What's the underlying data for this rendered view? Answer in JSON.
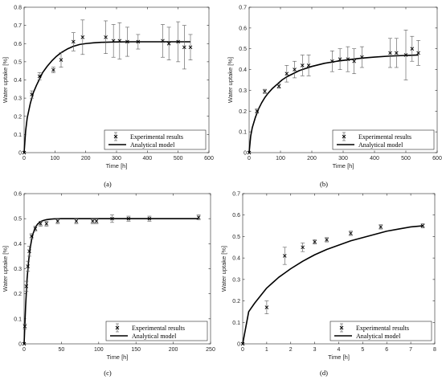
{
  "figure": {
    "captions": [
      "(a)",
      "(b)",
      "(c)",
      "(d)"
    ]
  },
  "chart_data": [
    {
      "type": "scatter",
      "panel": "(a)",
      "xlabel": "Time [h]",
      "ylabel": "Water uptake [%]",
      "xlim": [
        0,
        600
      ],
      "ylim": [
        0,
        0.8
      ],
      "xticks": [
        0,
        100,
        200,
        300,
        400,
        500,
        600
      ],
      "yticks": [
        0,
        0.1,
        0.2,
        0.3,
        0.4,
        0.5,
        0.6,
        0.7,
        0.8
      ],
      "legend": {
        "position": "bottom-right",
        "entries": [
          "Experimental results",
          "Analytical model"
        ]
      },
      "series": [
        {
          "name": "Experimental results",
          "style": "x-markers-with-error-bars",
          "x": [
            0,
            25,
            50,
            95,
            120,
            160,
            190,
            265,
            290,
            310,
            335,
            370,
            450,
            470,
            500,
            520,
            540
          ],
          "y": [
            0.0,
            0.32,
            0.42,
            0.455,
            0.51,
            0.61,
            0.635,
            0.635,
            0.615,
            0.615,
            0.61,
            0.61,
            0.615,
            0.6,
            0.61,
            0.58,
            0.58
          ],
          "err": [
            0.0,
            0.02,
            0.02,
            0.015,
            0.04,
            0.05,
            0.095,
            0.09,
            0.09,
            0.1,
            0.08,
            0.04,
            0.09,
            0.09,
            0.11,
            0.12,
            0.07
          ]
        },
        {
          "name": "Analytical model",
          "style": "line",
          "x": [
            0,
            5,
            10,
            20,
            30,
            40,
            50,
            60,
            75,
            90,
            105,
            120,
            140,
            160,
            180,
            200,
            225,
            250,
            300,
            350,
            400,
            450,
            500,
            540
          ],
          "y": [
            0.0,
            0.12,
            0.19,
            0.27,
            0.33,
            0.37,
            0.405,
            0.44,
            0.475,
            0.505,
            0.53,
            0.55,
            0.57,
            0.585,
            0.595,
            0.6,
            0.604,
            0.607,
            0.609,
            0.61,
            0.61,
            0.61,
            0.61,
            0.61
          ]
        }
      ]
    },
    {
      "type": "scatter",
      "panel": "(b)",
      "xlabel": "Time [h]",
      "ylabel": "Water uptake [%]",
      "xlim": [
        0,
        600
      ],
      "ylim": [
        0,
        0.7
      ],
      "xticks": [
        0,
        100,
        200,
        300,
        400,
        500,
        600
      ],
      "yticks": [
        0,
        0.1,
        0.2,
        0.3,
        0.4,
        0.5,
        0.6,
        0.7
      ],
      "legend": {
        "position": "bottom-right",
        "entries": [
          "Experimental results",
          "Analytical model"
        ]
      },
      "series": [
        {
          "name": "Experimental results",
          "style": "x-markers-with-error-bars",
          "x": [
            0,
            25,
            50,
            95,
            120,
            145,
            170,
            190,
            265,
            290,
            315,
            335,
            360,
            450,
            470,
            500,
            520,
            540
          ],
          "y": [
            0.0,
            0.2,
            0.295,
            0.32,
            0.38,
            0.4,
            0.42,
            0.42,
            0.44,
            0.45,
            0.45,
            0.44,
            0.46,
            0.48,
            0.48,
            0.47,
            0.5,
            0.48
          ],
          "err": [
            0.0,
            0.01,
            0.01,
            0.01,
            0.04,
            0.04,
            0.05,
            0.05,
            0.05,
            0.05,
            0.06,
            0.06,
            0.05,
            0.07,
            0.07,
            0.12,
            0.06,
            0.06
          ]
        },
        {
          "name": "Analytical model",
          "style": "line",
          "x": [
            0,
            5,
            10,
            20,
            30,
            40,
            50,
            60,
            75,
            90,
            105,
            120,
            140,
            160,
            180,
            200,
            240,
            280,
            320,
            360,
            400,
            450,
            500,
            540
          ],
          "y": [
            0.0,
            0.08,
            0.12,
            0.17,
            0.21,
            0.24,
            0.265,
            0.285,
            0.31,
            0.33,
            0.35,
            0.365,
            0.38,
            0.395,
            0.405,
            0.415,
            0.43,
            0.44,
            0.448,
            0.455,
            0.46,
            0.465,
            0.468,
            0.47
          ]
        }
      ]
    },
    {
      "type": "scatter",
      "panel": "(c)",
      "xlabel": "Time [h]",
      "ylabel": "Water uptake [%]",
      "xlim": [
        0,
        250
      ],
      "ylim": [
        0,
        0.6
      ],
      "xticks": [
        0,
        50,
        100,
        150,
        200,
        250
      ],
      "yticks": [
        0,
        0.1,
        0.2,
        0.3,
        0.4,
        0.5,
        0.6
      ],
      "legend": {
        "position": "bottom-right",
        "entries": [
          "Experimental results",
          "Analytical model"
        ]
      },
      "series": [
        {
          "name": "Experimental results",
          "style": "x-markers-with-error-bars",
          "x": [
            0,
            1,
            3,
            5,
            7,
            10,
            15,
            22,
            30,
            45,
            70,
            92,
            97,
            118,
            140,
            168,
            234
          ],
          "y": [
            0.0,
            0.07,
            0.23,
            0.31,
            0.37,
            0.43,
            0.46,
            0.48,
            0.48,
            0.49,
            0.49,
            0.49,
            0.49,
            0.5,
            0.5,
            0.5,
            0.505
          ],
          "err": [
            0.0,
            0.01,
            0.02,
            0.02,
            0.02,
            0.01,
            0.01,
            0.01,
            0.01,
            0.01,
            0.01,
            0.01,
            0.01,
            0.015,
            0.01,
            0.01,
            0.01
          ]
        },
        {
          "name": "Analytical model",
          "style": "line",
          "x": [
            0,
            2,
            4,
            6,
            8,
            10,
            12,
            15,
            18,
            22,
            26,
            30,
            35,
            40,
            50,
            70,
            100,
            150,
            200,
            234
          ],
          "y": [
            0.0,
            0.15,
            0.26,
            0.33,
            0.38,
            0.415,
            0.44,
            0.465,
            0.478,
            0.488,
            0.493,
            0.496,
            0.498,
            0.499,
            0.5,
            0.5,
            0.5,
            0.5,
            0.5,
            0.5
          ]
        }
      ]
    },
    {
      "type": "scatter",
      "panel": "(d)",
      "xlabel": "Time [h]",
      "ylabel": "Water uptake [%]",
      "xlim": [
        0,
        8
      ],
      "ylim": [
        0,
        0.7
      ],
      "xticks": [
        0,
        1,
        2,
        3,
        4,
        5,
        6,
        7,
        8
      ],
      "yticks": [
        0,
        0.1,
        0.2,
        0.3,
        0.4,
        0.5,
        0.6,
        0.7
      ],
      "legend": {
        "position": "bottom-right",
        "entries": [
          "Experimental results",
          "Analytical model"
        ]
      },
      "series": [
        {
          "name": "Experimental results",
          "style": "x-markers-with-error-bars",
          "x": [
            0,
            1,
            1.75,
            2.5,
            3,
            3.5,
            4.5,
            5.75,
            7.5
          ],
          "y": [
            0.0,
            0.17,
            0.41,
            0.45,
            0.475,
            0.485,
            0.515,
            0.545,
            0.55
          ],
          "err": [
            0.0,
            0.03,
            0.04,
            0.02,
            0.01,
            0.01,
            0.01,
            0.01,
            0.01
          ]
        },
        {
          "name": "Analytical model",
          "style": "line",
          "x": [
            0,
            0.25,
            0.5,
            0.75,
            1,
            1.25,
            1.5,
            1.75,
            2,
            2.5,
            3,
            3.5,
            4,
            4.5,
            5,
            5.5,
            6,
            6.5,
            7,
            7.5
          ],
          "y": [
            0.0,
            0.15,
            0.19,
            0.225,
            0.26,
            0.285,
            0.31,
            0.33,
            0.35,
            0.385,
            0.415,
            0.44,
            0.46,
            0.48,
            0.495,
            0.51,
            0.525,
            0.535,
            0.545,
            0.55
          ]
        }
      ]
    }
  ]
}
